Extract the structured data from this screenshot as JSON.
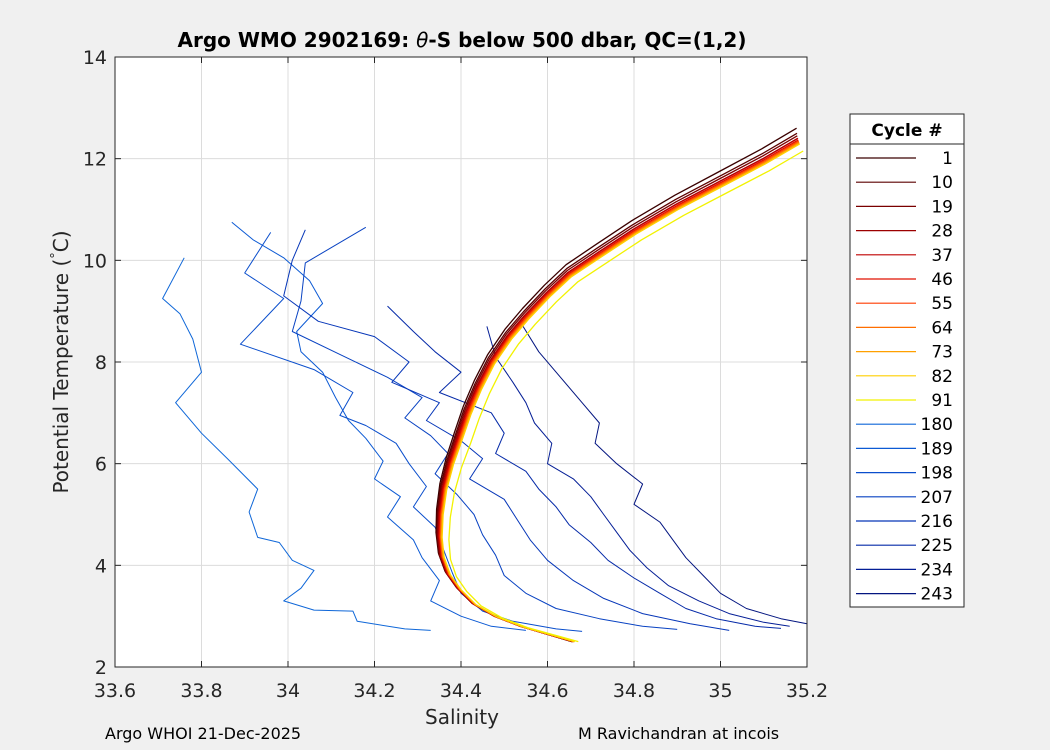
{
  "chart_data": {
    "type": "line",
    "title": "Argo WMO 2902169: θ-S below 500 dbar,  QC=(1,2)",
    "title_prefix": "Argo WMO 2902169: ",
    "title_symbol": "θ",
    "title_suffix": "-S below 500 dbar,  QC=(1,2)",
    "xlabel": "Salinity",
    "ylabel": "Potential Temperature (°C)",
    "ylabel_text": "Potential Temperature (",
    "ylabel_unit": "C)",
    "xlim": [
      33.6,
      35.2
    ],
    "ylim": [
      2,
      14
    ],
    "xticks": [
      "33.6",
      "33.8",
      "34",
      "34.2",
      "34.4",
      "34.6",
      "34.8",
      "35",
      "35.2"
    ],
    "yticks": [
      "2",
      "4",
      "6",
      "8",
      "10",
      "12",
      "14"
    ],
    "grid": true,
    "legend_position": "right",
    "legend_title": "Cycle #",
    "series": [
      {
        "name": "1",
        "color": "#3a0000",
        "dS": -0.01,
        "dT": 0.15
      },
      {
        "name": "10",
        "color": "#5c0000",
        "dS": -0.008,
        "dT": 0.05
      },
      {
        "name": "19",
        "color": "#7a0000",
        "dS": -0.006,
        "dT": 0.0
      },
      {
        "name": "28",
        "color": "#9c0000",
        "dS": -0.004,
        "dT": -0.05
      },
      {
        "name": "37",
        "color": "#bf0000",
        "dS": -0.002,
        "dT": -0.05
      },
      {
        "name": "46",
        "color": "#e01000",
        "dS": 0.0,
        "dT": -0.08
      },
      {
        "name": "55",
        "color": "#ff3c00",
        "dS": 0.002,
        "dT": -0.1
      },
      {
        "name": "64",
        "color": "#ff6e00",
        "dS": 0.004,
        "dT": -0.12
      },
      {
        "name": "73",
        "color": "#ffa000",
        "dS": 0.006,
        "dT": -0.14
      },
      {
        "name": "82",
        "color": "#ffcf00",
        "dS": 0.008,
        "dT": -0.16
      },
      {
        "name": "91",
        "color": "#f2f200",
        "dS": 0.028,
        "dT": -0.3
      },
      {
        "name": "180",
        "color": "#0f67d8",
        "walk": [
          [
            33.76,
            10.05
          ],
          [
            33.71,
            9.25
          ],
          [
            33.75,
            8.95
          ],
          [
            33.78,
            8.45
          ],
          [
            33.8,
            7.8
          ],
          [
            33.74,
            7.2
          ],
          [
            33.8,
            6.6
          ],
          [
            33.86,
            6.1
          ],
          [
            33.93,
            5.5
          ],
          [
            33.91,
            5.05
          ],
          [
            33.93,
            4.55
          ],
          [
            33.98,
            4.45
          ],
          [
            34.01,
            4.1
          ],
          [
            34.06,
            3.9
          ],
          [
            34.03,
            3.55
          ],
          [
            33.99,
            3.3
          ],
          [
            34.06,
            3.12
          ],
          [
            34.15,
            3.1
          ],
          [
            34.16,
            2.9
          ],
          [
            34.27,
            2.75
          ],
          [
            34.33,
            2.72
          ]
        ]
      },
      {
        "name": "189",
        "color": "#0c5ad4",
        "walk": [
          [
            33.87,
            10.75
          ],
          [
            33.92,
            10.4
          ],
          [
            33.99,
            10.05
          ],
          [
            34.05,
            9.6
          ],
          [
            34.08,
            9.15
          ],
          [
            34.02,
            8.6
          ],
          [
            34.03,
            8.2
          ],
          [
            34.08,
            7.8
          ],
          [
            34.11,
            7.3
          ],
          [
            34.14,
            6.85
          ],
          [
            34.18,
            6.5
          ],
          [
            34.22,
            6.05
          ],
          [
            34.2,
            5.7
          ],
          [
            34.26,
            5.35
          ],
          [
            34.23,
            4.95
          ],
          [
            34.29,
            4.5
          ],
          [
            34.31,
            4.15
          ],
          [
            34.35,
            3.7
          ],
          [
            34.33,
            3.3
          ],
          [
            34.4,
            3.0
          ],
          [
            34.47,
            2.8
          ],
          [
            34.55,
            2.72
          ]
        ]
      },
      {
        "name": "198",
        "color": "#0a4ecc",
        "walk": [
          [
            33.96,
            10.55
          ],
          [
            33.9,
            9.75
          ],
          [
            33.99,
            9.25
          ],
          [
            33.89,
            8.35
          ],
          [
            34.06,
            7.85
          ],
          [
            34.15,
            7.4
          ],
          [
            34.12,
            6.95
          ],
          [
            34.18,
            6.75
          ],
          [
            34.25,
            6.4
          ],
          [
            34.28,
            6.0
          ],
          [
            34.32,
            5.55
          ],
          [
            34.29,
            5.15
          ],
          [
            34.34,
            4.75
          ],
          [
            34.36,
            4.3
          ],
          [
            34.38,
            3.85
          ],
          [
            34.4,
            3.45
          ],
          [
            34.45,
            3.1
          ],
          [
            34.52,
            2.9
          ],
          [
            34.62,
            2.75
          ],
          [
            34.68,
            2.7
          ]
        ]
      },
      {
        "name": "207",
        "color": "#0842c2",
        "walk": [
          [
            34.18,
            10.65
          ],
          [
            34.04,
            9.95
          ],
          [
            34.03,
            9.2
          ],
          [
            34.01,
            8.6
          ],
          [
            34.12,
            8.15
          ],
          [
            34.23,
            7.7
          ],
          [
            34.31,
            7.3
          ],
          [
            34.27,
            6.9
          ],
          [
            34.33,
            6.55
          ],
          [
            34.37,
            6.2
          ],
          [
            34.34,
            5.8
          ],
          [
            34.39,
            5.4
          ],
          [
            34.43,
            5.0
          ],
          [
            34.45,
            4.6
          ],
          [
            34.48,
            4.2
          ],
          [
            34.5,
            3.8
          ],
          [
            34.55,
            3.45
          ],
          [
            34.62,
            3.15
          ],
          [
            34.72,
            2.95
          ],
          [
            34.82,
            2.8
          ],
          [
            34.9,
            2.74
          ]
        ]
      },
      {
        "name": "216",
        "color": "#0636b8",
        "walk": [
          [
            34.04,
            10.6
          ],
          [
            34.01,
            10.0
          ],
          [
            33.99,
            9.3
          ],
          [
            34.07,
            8.8
          ],
          [
            34.2,
            8.5
          ],
          [
            34.28,
            8.0
          ],
          [
            34.24,
            7.6
          ],
          [
            34.35,
            7.2
          ],
          [
            34.32,
            6.85
          ],
          [
            34.4,
            6.45
          ],
          [
            34.45,
            6.1
          ],
          [
            34.42,
            5.7
          ],
          [
            34.5,
            5.3
          ],
          [
            34.53,
            4.9
          ],
          [
            34.56,
            4.5
          ],
          [
            34.6,
            4.1
          ],
          [
            34.66,
            3.7
          ],
          [
            34.73,
            3.35
          ],
          [
            34.82,
            3.05
          ],
          [
            34.93,
            2.85
          ],
          [
            35.02,
            2.72
          ]
        ]
      },
      {
        "name": "225",
        "color": "#052aa8",
        "walk": [
          [
            34.23,
            9.1
          ],
          [
            34.29,
            8.6
          ],
          [
            34.34,
            8.2
          ],
          [
            34.4,
            7.8
          ],
          [
            34.35,
            7.4
          ],
          [
            34.47,
            7.0
          ],
          [
            34.5,
            6.6
          ],
          [
            34.48,
            6.2
          ],
          [
            34.55,
            5.85
          ],
          [
            34.58,
            5.5
          ],
          [
            34.62,
            5.15
          ],
          [
            34.65,
            4.8
          ],
          [
            34.7,
            4.45
          ],
          [
            34.74,
            4.1
          ],
          [
            34.8,
            3.75
          ],
          [
            34.86,
            3.45
          ],
          [
            34.92,
            3.15
          ],
          [
            34.99,
            2.95
          ],
          [
            35.08,
            2.8
          ],
          [
            35.14,
            2.76
          ]
        ]
      },
      {
        "name": "234",
        "color": "#041e96",
        "walk": [
          [
            34.46,
            8.7
          ],
          [
            34.48,
            8.1
          ],
          [
            34.52,
            7.6
          ],
          [
            34.55,
            7.2
          ],
          [
            34.57,
            6.8
          ],
          [
            34.61,
            6.4
          ],
          [
            34.6,
            6.0
          ],
          [
            34.66,
            5.7
          ],
          [
            34.7,
            5.35
          ],
          [
            34.73,
            5.0
          ],
          [
            34.76,
            4.65
          ],
          [
            34.79,
            4.3
          ],
          [
            34.83,
            3.95
          ],
          [
            34.88,
            3.6
          ],
          [
            34.95,
            3.3
          ],
          [
            35.02,
            3.05
          ],
          [
            35.1,
            2.88
          ],
          [
            35.16,
            2.8
          ]
        ]
      },
      {
        "name": "243",
        "color": "#031580",
        "walk": [
          [
            34.54,
            8.75
          ],
          [
            34.58,
            8.2
          ],
          [
            34.63,
            7.7
          ],
          [
            34.68,
            7.2
          ],
          [
            34.72,
            6.8
          ],
          [
            34.71,
            6.4
          ],
          [
            34.76,
            6.0
          ],
          [
            34.82,
            5.6
          ],
          [
            34.8,
            5.2
          ],
          [
            34.86,
            4.85
          ],
          [
            34.89,
            4.5
          ],
          [
            34.92,
            4.15
          ],
          [
            34.96,
            3.8
          ],
          [
            35.0,
            3.45
          ],
          [
            35.06,
            3.15
          ],
          [
            35.14,
            2.95
          ],
          [
            35.2,
            2.85
          ]
        ]
      }
    ]
  },
  "footer": {
    "left": "Argo WHOI 21-Dec-2025",
    "right": "M Ravichandran at incois"
  }
}
